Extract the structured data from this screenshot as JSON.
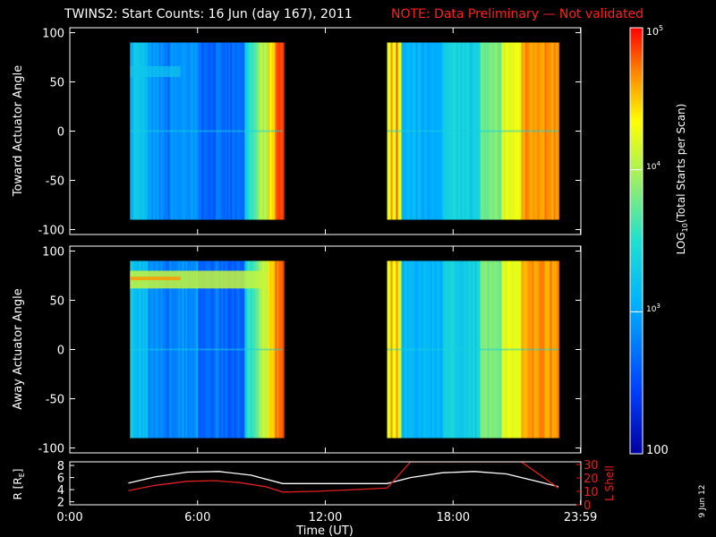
{
  "title": "TWINS2: Start Counts: 16 Jun (day 167), 2011",
  "note": "NOTE: Data Preliminary — Not validated",
  "note_color": "#ff2020",
  "side_date": "9 Jun 12",
  "chart_data": [
    {
      "type": "heatmap",
      "name": "toward",
      "ylabel": "Toward Actuator Angle",
      "ylim": [
        -105,
        105
      ],
      "yticks": [
        100,
        50,
        0,
        -50,
        -100
      ],
      "xlim": [
        0,
        24
      ],
      "data_blocks_hours": [
        [
          2.83,
          10.0
        ],
        [
          14.9,
          22.95
        ]
      ],
      "angle_range": [
        -90,
        90
      ]
    },
    {
      "type": "heatmap",
      "name": "away",
      "ylabel": "Away Actuator Angle",
      "ylim": [
        -105,
        105
      ],
      "yticks": [
        100,
        50,
        0,
        -50,
        -100
      ],
      "xlim": [
        0,
        24
      ],
      "data_blocks_hours": [
        [
          2.83,
          10.0
        ],
        [
          14.9,
          22.95
        ]
      ],
      "angle_range": [
        -90,
        90
      ]
    },
    {
      "type": "line",
      "name": "orbit",
      "xlabel": "Time (UT)",
      "xlim": [
        0,
        24
      ],
      "xtick_labels": [
        "0:00",
        "6:00",
        "12:00",
        "18:00",
        "23:59"
      ],
      "xtick_hours": [
        0,
        6,
        12,
        18,
        23.983
      ],
      "left_ylabel": "R [R",
      "left_ylabel_sub": "E",
      "left_ylabel_end": "]",
      "left_yticks": [
        8,
        6,
        4,
        2
      ],
      "left_ylim": [
        1.5,
        8.6
      ],
      "right_ylabel": "L Shell",
      "right_yticks": [
        30,
        20,
        10,
        0
      ],
      "right_ylim": [
        0,
        32
      ],
      "series": [
        {
          "axis": "left",
          "color": "#ffffff",
          "points": [
            [
              2.75,
              5.1
            ],
            [
              4.0,
              6.1
            ],
            [
              5.5,
              6.9
            ],
            [
              7.0,
              7.0
            ],
            [
              8.5,
              6.4
            ],
            [
              10.0,
              5.0
            ],
            [
              14.9,
              5.0
            ],
            [
              16.0,
              6.0
            ],
            [
              17.5,
              6.8
            ],
            [
              19.0,
              7.0
            ],
            [
              20.5,
              6.6
            ],
            [
              21.8,
              5.5
            ],
            [
              22.95,
              4.5
            ]
          ]
        },
        {
          "axis": "right",
          "color": "#e02020",
          "points": [
            [
              2.75,
              10.5
            ],
            [
              4.0,
              14.5
            ],
            [
              5.5,
              17.5
            ],
            [
              6.8,
              18.0
            ],
            [
              8.0,
              16.5
            ],
            [
              9.2,
              13.5
            ],
            [
              10.0,
              9.5
            ],
            [
              11.5,
              10.0
            ],
            [
              13.0,
              11.0
            ],
            [
              14.9,
              12.5
            ],
            [
              16.0,
              32.0
            ],
            [
              21.2,
              32.0
            ],
            [
              22.95,
              12.5
            ]
          ]
        }
      ]
    }
  ],
  "colorbar": {
    "label": "LOG",
    "label_sub": "10",
    "label_rest": "(Total Starts per Scan)",
    "top_base": "10",
    "top_exp": "5",
    "mid_base": "10",
    "mid_exp": "4",
    "low_base": "10",
    "low_exp": "3",
    "bottom": "100",
    "min": 100,
    "max": 100000,
    "tick_values": [
      100000,
      10000,
      1000,
      100
    ]
  }
}
